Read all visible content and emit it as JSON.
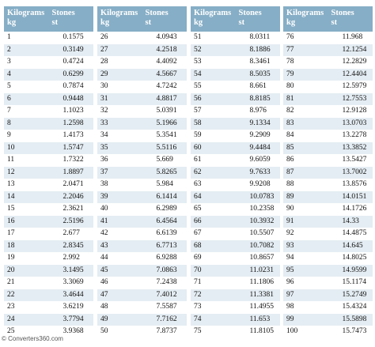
{
  "tables": [
    {
      "headers": [
        [
          "Kilograms",
          "kg"
        ],
        [
          "Stones",
          "st"
        ]
      ],
      "rows": [
        [
          1,
          0.1575
        ],
        [
          2,
          0.3149
        ],
        [
          3,
          0.4724
        ],
        [
          4,
          0.6299
        ],
        [
          5,
          0.7874
        ],
        [
          6,
          0.9448
        ],
        [
          7,
          1.1023
        ],
        [
          8,
          1.2598
        ],
        [
          9,
          1.4173
        ],
        [
          10,
          1.5747
        ],
        [
          11,
          1.7322
        ],
        [
          12,
          1.8897
        ],
        [
          13,
          2.0471
        ],
        [
          14,
          2.2046
        ],
        [
          15,
          2.3621
        ],
        [
          16,
          2.5196
        ],
        [
          17,
          2.677
        ],
        [
          18,
          2.8345
        ],
        [
          19,
          2.992
        ],
        [
          20,
          3.1495
        ],
        [
          21,
          3.3069
        ],
        [
          22,
          3.4644
        ],
        [
          23,
          3.6219
        ],
        [
          24,
          3.7794
        ],
        [
          25,
          3.9368
        ]
      ]
    },
    {
      "headers": [
        [
          "Kilograms",
          "kg"
        ],
        [
          "Stones",
          "st"
        ]
      ],
      "rows": [
        [
          26,
          4.0943
        ],
        [
          27,
          4.2518
        ],
        [
          28,
          4.4092
        ],
        [
          29,
          4.5667
        ],
        [
          30,
          4.7242
        ],
        [
          31,
          4.8817
        ],
        [
          32,
          5.0391
        ],
        [
          33,
          5.1966
        ],
        [
          34,
          5.3541
        ],
        [
          35,
          5.5116
        ],
        [
          36,
          5.669
        ],
        [
          37,
          5.8265
        ],
        [
          38,
          5.984
        ],
        [
          39,
          6.1414
        ],
        [
          40,
          6.2989
        ],
        [
          41,
          6.4564
        ],
        [
          42,
          6.6139
        ],
        [
          43,
          6.7713
        ],
        [
          44,
          6.9288
        ],
        [
          45,
          7.0863
        ],
        [
          46,
          7.2438
        ],
        [
          47,
          7.4012
        ],
        [
          48,
          7.5587
        ],
        [
          49,
          7.7162
        ],
        [
          50,
          7.8737
        ]
      ]
    },
    {
      "headers": [
        [
          "Kilograms",
          "kg"
        ],
        [
          "Stones",
          "st"
        ]
      ],
      "rows": [
        [
          51,
          8.0311
        ],
        [
          52,
          8.1886
        ],
        [
          53,
          8.3461
        ],
        [
          54,
          8.5035
        ],
        [
          55,
          8.661
        ],
        [
          56,
          8.8185
        ],
        [
          57,
          8.976
        ],
        [
          58,
          9.1334
        ],
        [
          59,
          9.2909
        ],
        [
          60,
          9.4484
        ],
        [
          61,
          9.6059
        ],
        [
          62,
          9.7633
        ],
        [
          63,
          9.9208
        ],
        [
          64,
          10.0783
        ],
        [
          65,
          10.2358
        ],
        [
          66,
          10.3932
        ],
        [
          67,
          10.5507
        ],
        [
          68,
          10.7082
        ],
        [
          69,
          10.8657
        ],
        [
          70,
          11.0231
        ],
        [
          71,
          11.1806
        ],
        [
          72,
          11.3381
        ],
        [
          73,
          11.4955
        ],
        [
          74,
          11.653
        ],
        [
          75,
          11.8105
        ]
      ]
    },
    {
      "headers": [
        [
          "Kilograms",
          "kg"
        ],
        [
          "Stones",
          "st"
        ]
      ],
      "rows": [
        [
          76,
          11.968
        ],
        [
          77,
          12.1254
        ],
        [
          78,
          12.2829
        ],
        [
          79,
          12.4404
        ],
        [
          80,
          12.5979
        ],
        [
          81,
          12.7553
        ],
        [
          82,
          12.9128
        ],
        [
          83,
          13.0703
        ],
        [
          84,
          13.2278
        ],
        [
          85,
          13.3852
        ],
        [
          86,
          13.5427
        ],
        [
          87,
          13.7002
        ],
        [
          88,
          13.8576
        ],
        [
          89,
          14.0151
        ],
        [
          90,
          14.1726
        ],
        [
          91,
          14.33
        ],
        [
          92,
          14.4875
        ],
        [
          93,
          14.645
        ],
        [
          94,
          14.8025
        ],
        [
          95,
          14.9599
        ],
        [
          96,
          15.1174
        ],
        [
          97,
          15.2749
        ],
        [
          98,
          15.4324
        ],
        [
          99,
          15.5898
        ],
        [
          100,
          15.7473
        ]
      ]
    }
  ],
  "footer": "© Converters360.com"
}
